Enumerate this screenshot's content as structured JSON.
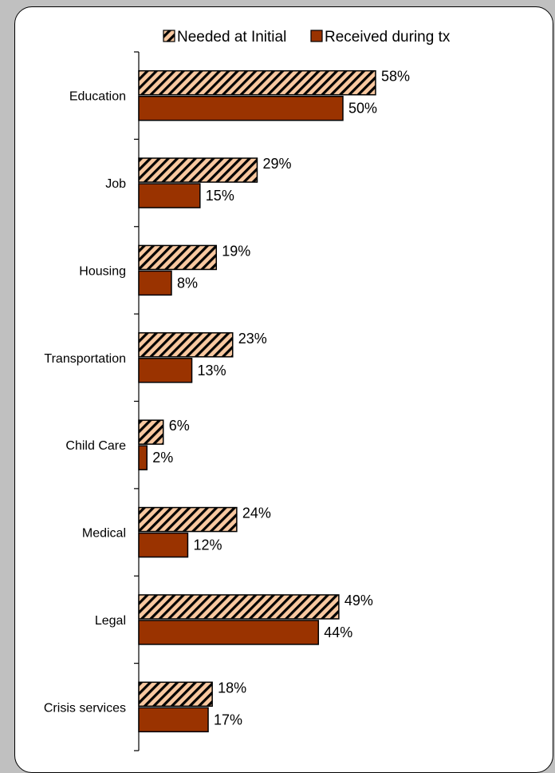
{
  "chart_data": {
    "type": "bar",
    "orientation": "horizontal",
    "categories": [
      "Education",
      "Job",
      "Housing",
      "Transportation",
      "Child Care",
      "Medical",
      "Legal",
      "Crisis services"
    ],
    "series": [
      {
        "name": "Needed at Initial",
        "values": [
          58,
          29,
          19,
          23,
          6,
          24,
          49,
          18
        ],
        "labels": [
          "58%",
          "29%",
          "19%",
          "23%",
          "6%",
          "24%",
          "49%",
          "18%"
        ],
        "color": "#F8C8A0",
        "pattern": "diagonal-hatch"
      },
      {
        "name": "Received during tx",
        "values": [
          50,
          15,
          8,
          13,
          2,
          12,
          44,
          17
        ],
        "labels": [
          "50%",
          "15%",
          "8%",
          "13%",
          "2%",
          "12%",
          "44%",
          "17%"
        ],
        "color": "#9A3300",
        "pattern": "solid"
      }
    ],
    "xlim": [
      0,
      100
    ],
    "unit": "%",
    "grid": false,
    "legend_position": "top",
    "title": "",
    "xlabel": "",
    "ylabel": ""
  }
}
